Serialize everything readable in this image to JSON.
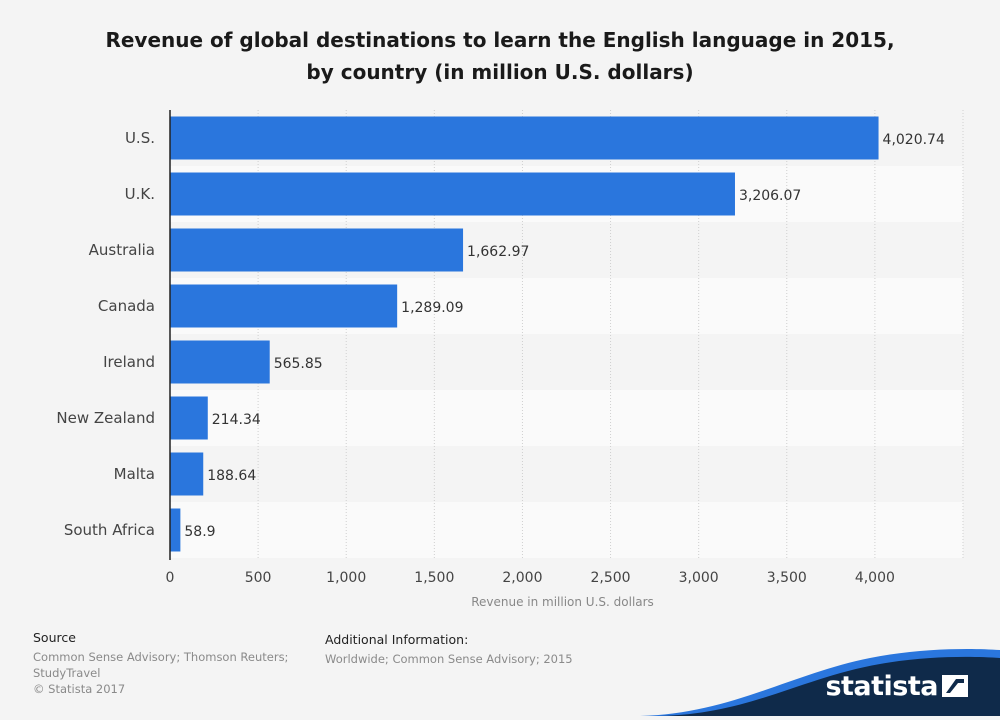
{
  "title_line1": "Revenue of global destinations to learn the English language in 2015,",
  "title_line2": "by country (in million U.S. dollars)",
  "chart_data": {
    "type": "bar",
    "orientation": "horizontal",
    "categories": [
      "U.S.",
      "U.K.",
      "Australia",
      "Canada",
      "Ireland",
      "New Zealand",
      "Malta",
      "South Africa"
    ],
    "values": [
      4020.74,
      3206.07,
      1662.97,
      1289.09,
      565.85,
      214.34,
      188.64,
      58.9
    ],
    "value_labels": [
      "4,020.74",
      "3,206.07",
      "1,662.97",
      "1,289.09",
      "565.85",
      "214.34",
      "188.64",
      "58.9"
    ],
    "xticks": [
      0,
      500,
      1000,
      1500,
      2000,
      2500,
      3000,
      3500,
      4000
    ],
    "xtick_labels": [
      "0",
      "500",
      "1,000",
      "1,500",
      "2,000",
      "2,500",
      "3,000",
      "3,500",
      "4,000"
    ],
    "xlim": [
      0,
      4500
    ],
    "xlabel": "Revenue in million U.S. dollars",
    "ylabel": "",
    "grid": true,
    "bar_color": "#2a76dd"
  },
  "source": {
    "heading": "Source",
    "line1": "Common Sense Advisory; Thomson Reuters;",
    "line2": "StudyTravel",
    "line3": "© Statista 2017"
  },
  "additional_info": {
    "heading": "Additional Information:",
    "text": "Worldwide; Common Sense Advisory; 2015"
  },
  "brand": {
    "name": "statista",
    "dark_color": "#0f2a4a",
    "accent_color": "#2a76dd"
  }
}
